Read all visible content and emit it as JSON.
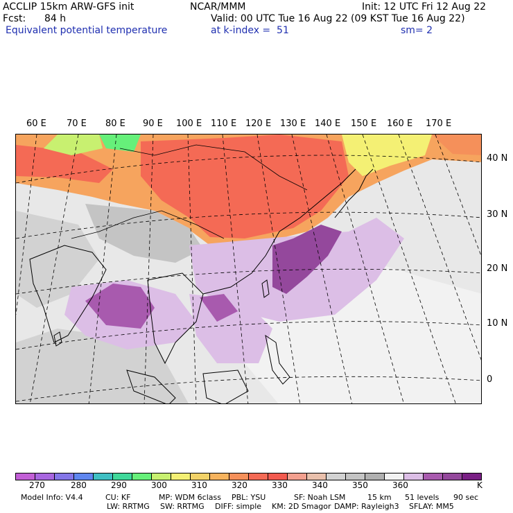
{
  "header": {
    "model_title": "ACCLIP 15km ARW-GFS init",
    "center": "NCAR/MMM",
    "init": "Init: 12 UTC Fri 12 Aug 22",
    "fcst_label": "Fcst:",
    "fcst_value": "84 h",
    "valid": "Valid: 00 UTC Tue 16 Aug 22 (09 KST Tue 16 Aug 22)",
    "field": "Equivalent potential temperature",
    "level": "at k-index =  51",
    "smoothing": "sm= 2"
  },
  "map": {
    "lon_labels": [
      "60 E",
      "70 E",
      "80 E",
      "90 E",
      "100 E",
      "110 E",
      "120 E",
      "130 E",
      "140 E",
      "150 E",
      "160 E",
      "170 E"
    ],
    "lat_labels": [
      "40 N",
      "30 N",
      "20 N",
      "10 N",
      "0"
    ]
  },
  "colorbar": {
    "colors": [
      "#c25fd6",
      "#a866e0",
      "#8476e8",
      "#5f86ef",
      "#3fbfc3",
      "#3fd89a",
      "#66f07a",
      "#c8f070",
      "#f4f074",
      "#f2d268",
      "#f6b35e",
      "#f5905a",
      "#f46a55",
      "#f25a4f",
      "#f3a08f",
      "#e9c0ac",
      "#d2d2d2",
      "#c4c4c4",
      "#b0b0b0",
      "#f2f2f2",
      "#dcbee6",
      "#a85aae",
      "#94489c",
      "#7a1f85"
    ],
    "labels": [
      "270",
      "280",
      "290",
      "300",
      "310",
      "320",
      "330",
      "340",
      "350",
      "360"
    ],
    "units": "K"
  },
  "model_info": {
    "line1": [
      "Model Info: V4.4",
      "CU: KF",
      "MP: WDM 6class",
      "PBL: YSU",
      "SF: Noah LSM",
      "15 km",
      "51 levels",
      "90 sec"
    ],
    "line2": [
      "LW: RRTMG",
      "SW: RRTMG",
      "DIFF: simple",
      "KM: 2D Smagor",
      "DAMP: Rayleigh3",
      "SFLAY: MM5"
    ]
  }
}
